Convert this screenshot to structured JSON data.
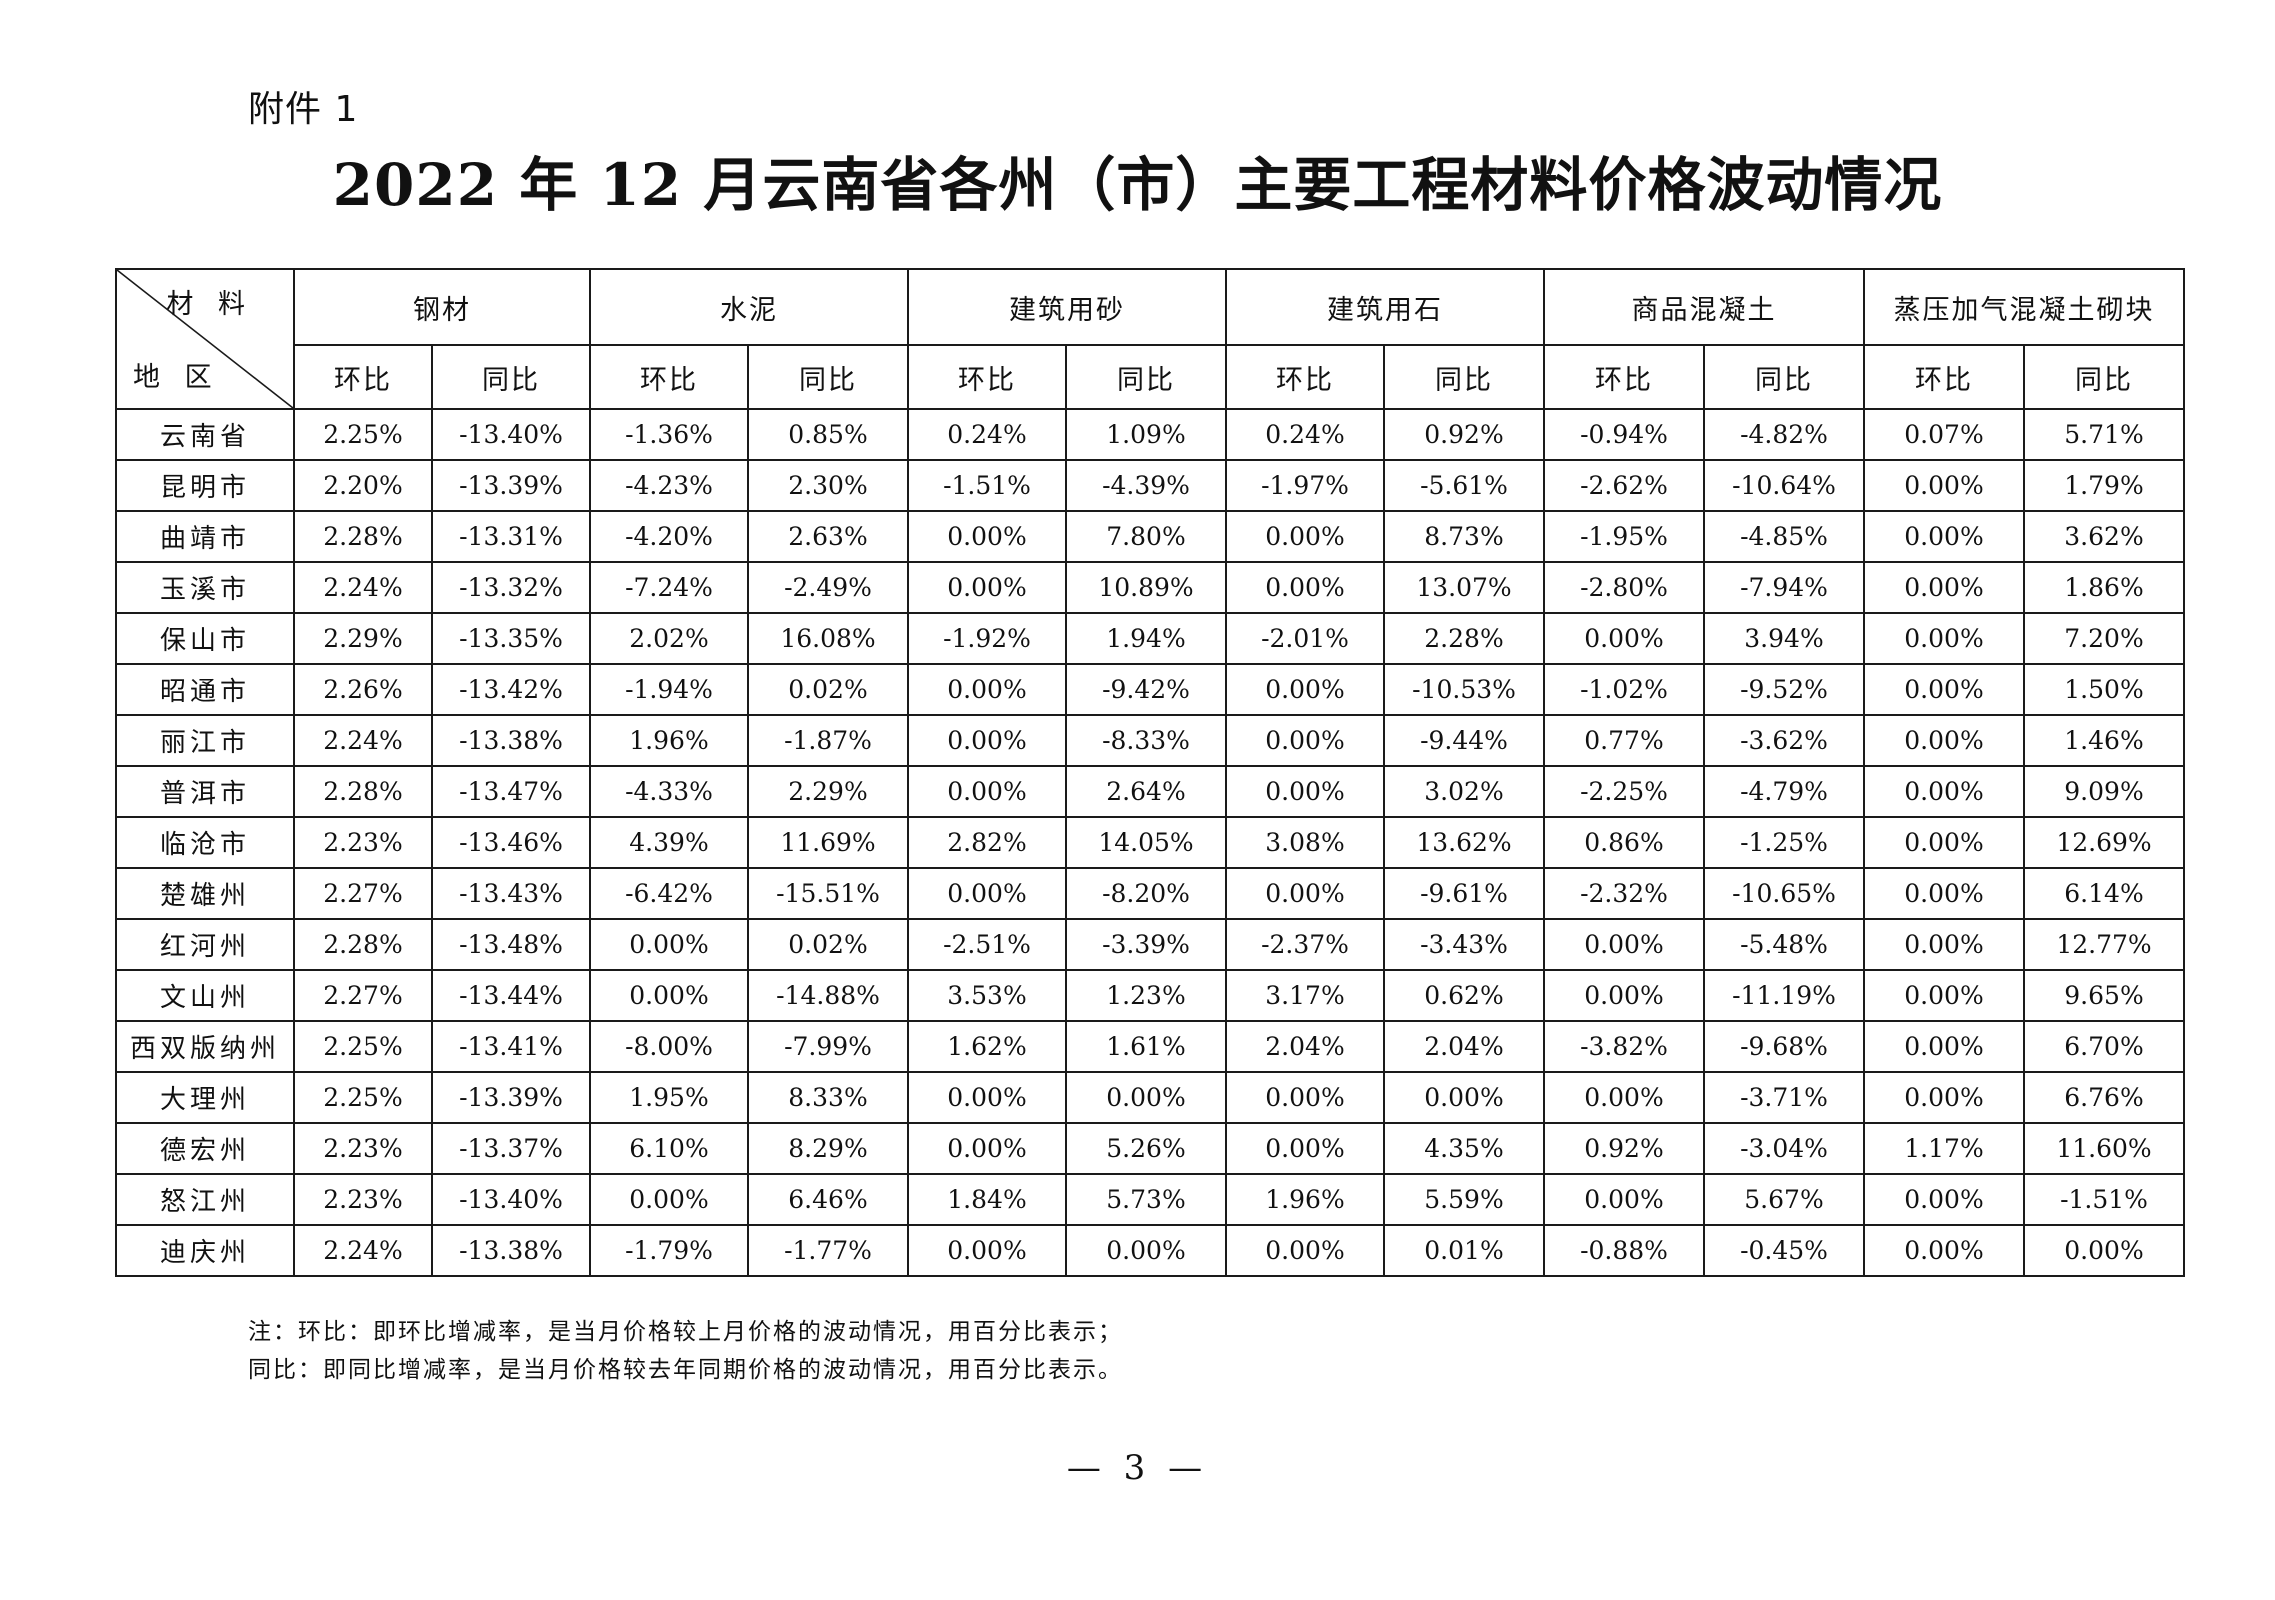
{
  "attachment_label": "附件 1",
  "title": "2022 年 12 月云南省各州（市）主要工程材料价格波动情况",
  "corner": {
    "materials_label": "材 料",
    "region_label": "地 区"
  },
  "materials": [
    "钢材",
    "水泥",
    "建筑用砂",
    "建筑用石",
    "商品混凝土",
    "蒸压加气混凝土砌块"
  ],
  "sub_headers": {
    "mom": "环比",
    "yoy": "同比"
  },
  "rows": [
    {
      "region": "云南省",
      "v": [
        "2.25%",
        "-13.40%",
        "-1.36%",
        "0.85%",
        "0.24%",
        "1.09%",
        "0.24%",
        "0.92%",
        "-0.94%",
        "-4.82%",
        "0.07%",
        "5.71%"
      ]
    },
    {
      "region": "昆明市",
      "v": [
        "2.20%",
        "-13.39%",
        "-4.23%",
        "2.30%",
        "-1.51%",
        "-4.39%",
        "-1.97%",
        "-5.61%",
        "-2.62%",
        "-10.64%",
        "0.00%",
        "1.79%"
      ]
    },
    {
      "region": "曲靖市",
      "v": [
        "2.28%",
        "-13.31%",
        "-4.20%",
        "2.63%",
        "0.00%",
        "7.80%",
        "0.00%",
        "8.73%",
        "-1.95%",
        "-4.85%",
        "0.00%",
        "3.62%"
      ]
    },
    {
      "region": "玉溪市",
      "v": [
        "2.24%",
        "-13.32%",
        "-7.24%",
        "-2.49%",
        "0.00%",
        "10.89%",
        "0.00%",
        "13.07%",
        "-2.80%",
        "-7.94%",
        "0.00%",
        "1.86%"
      ]
    },
    {
      "region": "保山市",
      "v": [
        "2.29%",
        "-13.35%",
        "2.02%",
        "16.08%",
        "-1.92%",
        "1.94%",
        "-2.01%",
        "2.28%",
        "0.00%",
        "3.94%",
        "0.00%",
        "7.20%"
      ]
    },
    {
      "region": "昭通市",
      "v": [
        "2.26%",
        "-13.42%",
        "-1.94%",
        "0.02%",
        "0.00%",
        "-9.42%",
        "0.00%",
        "-10.53%",
        "-1.02%",
        "-9.52%",
        "0.00%",
        "1.50%"
      ]
    },
    {
      "region": "丽江市",
      "v": [
        "2.24%",
        "-13.38%",
        "1.96%",
        "-1.87%",
        "0.00%",
        "-8.33%",
        "0.00%",
        "-9.44%",
        "0.77%",
        "-3.62%",
        "0.00%",
        "1.46%"
      ]
    },
    {
      "region": "普洱市",
      "v": [
        "2.28%",
        "-13.47%",
        "-4.33%",
        "2.29%",
        "0.00%",
        "2.64%",
        "0.00%",
        "3.02%",
        "-2.25%",
        "-4.79%",
        "0.00%",
        "9.09%"
      ]
    },
    {
      "region": "临沧市",
      "v": [
        "2.23%",
        "-13.46%",
        "4.39%",
        "11.69%",
        "2.82%",
        "14.05%",
        "3.08%",
        "13.62%",
        "0.86%",
        "-1.25%",
        "0.00%",
        "12.69%"
      ]
    },
    {
      "region": "楚雄州",
      "v": [
        "2.27%",
        "-13.43%",
        "-6.42%",
        "-15.51%",
        "0.00%",
        "-8.20%",
        "0.00%",
        "-9.61%",
        "-2.32%",
        "-10.65%",
        "0.00%",
        "6.14%"
      ]
    },
    {
      "region": "红河州",
      "v": [
        "2.28%",
        "-13.48%",
        "0.00%",
        "0.02%",
        "-2.51%",
        "-3.39%",
        "-2.37%",
        "-3.43%",
        "0.00%",
        "-5.48%",
        "0.00%",
        "12.77%"
      ]
    },
    {
      "region": "文山州",
      "v": [
        "2.27%",
        "-13.44%",
        "0.00%",
        "-14.88%",
        "3.53%",
        "1.23%",
        "3.17%",
        "0.62%",
        "0.00%",
        "-11.19%",
        "0.00%",
        "9.65%"
      ]
    },
    {
      "region": "西双版纳州",
      "v": [
        "2.25%",
        "-13.41%",
        "-8.00%",
        "-7.99%",
        "1.62%",
        "1.61%",
        "2.04%",
        "2.04%",
        "-3.82%",
        "-9.68%",
        "0.00%",
        "6.70%"
      ]
    },
    {
      "region": "大理州",
      "v": [
        "2.25%",
        "-13.39%",
        "1.95%",
        "8.33%",
        "0.00%",
        "0.00%",
        "0.00%",
        "0.00%",
        "0.00%",
        "-3.71%",
        "0.00%",
        "6.76%"
      ]
    },
    {
      "region": "德宏州",
      "v": [
        "2.23%",
        "-13.37%",
        "6.10%",
        "8.29%",
        "0.00%",
        "5.26%",
        "0.00%",
        "4.35%",
        "0.92%",
        "-3.04%",
        "1.17%",
        "11.60%"
      ]
    },
    {
      "region": "怒江州",
      "v": [
        "2.23%",
        "-13.40%",
        "0.00%",
        "6.46%",
        "1.84%",
        "5.73%",
        "1.96%",
        "5.59%",
        "0.00%",
        "5.67%",
        "0.00%",
        "-1.51%"
      ]
    },
    {
      "region": "迪庆州",
      "v": [
        "2.24%",
        "-13.38%",
        "-1.79%",
        "-1.77%",
        "0.00%",
        "0.00%",
        "0.00%",
        "0.01%",
        "-0.88%",
        "-0.45%",
        "0.00%",
        "0.00%"
      ]
    }
  ],
  "notes": [
    "注：环比：即环比增减率，是当月价格较上月价格的波动情况，用百分比表示；",
    "同比：即同比增减率，是当月价格较去年同期价格的波动情况，用百分比表示。"
  ],
  "page_number": "— 3 —"
}
